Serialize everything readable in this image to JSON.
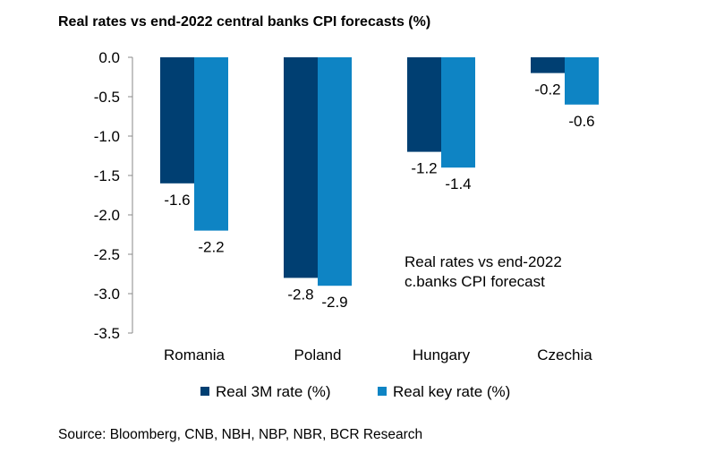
{
  "title": "Real rates vs end-2022 central banks CPI forecasts (%)",
  "source": "Source: Bloomberg, CNB, NBH, NBP, NBR, BCR Research",
  "colors": {
    "real_3m": "#003F72",
    "real_key": "#0E84C4",
    "axis": "#888888"
  },
  "chart_data": {
    "type": "bar",
    "categories": [
      "Romania",
      "Poland",
      "Hungary",
      "Czechia"
    ],
    "series": [
      {
        "name": "Real 3M rate (%)",
        "values": [
          -1.6,
          -2.8,
          -1.2,
          -0.2
        ],
        "labels": [
          "-1.6",
          "-2.8",
          "-1.2",
          "-0.2"
        ]
      },
      {
        "name": "Real key rate (%)",
        "values": [
          -2.2,
          -2.9,
          -1.4,
          -0.6
        ],
        "labels": [
          "-2.2",
          "-2.9",
          "-1.4",
          "-0.6"
        ]
      }
    ],
    "ylim": [
      -3.5,
      0.0
    ],
    "yticks": [
      "0.0",
      "-0.5",
      "-1.0",
      "-1.5",
      "-2.0",
      "-2.5",
      "-3.0",
      "-3.5"
    ],
    "grid": false,
    "legend": "bottom",
    "annotation": [
      "Real rates vs end-2022",
      "c.banks CPI forecast"
    ]
  }
}
